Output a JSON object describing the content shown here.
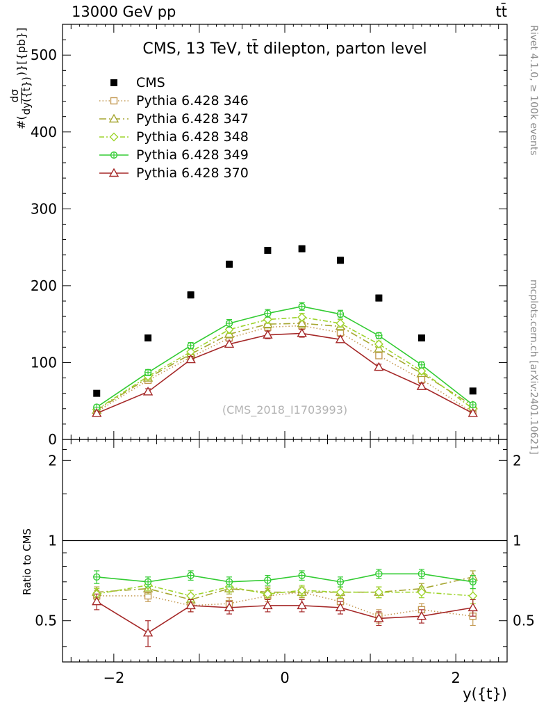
{
  "header": {
    "left": "13000 GeV pp",
    "right": "tt̄"
  },
  "titles": {
    "plot_title": "CMS, 13 TeV, tt̄ dilepton, parton level",
    "watermark": "(CMS_2018_I1703993)",
    "x_axis_label": "y({t})",
    "ratio_label": "Ratio to CMS",
    "y_axis_label_prefix": "#(",
    "y_axis_frac_num": "dσ",
    "y_axis_frac_den": "dy({t})",
    "y_axis_label_suffix": ")}[{pb}]",
    "right_top": "Rivet 4.1.0, ≥ 100k events",
    "right_bottom": "mcplots.cern.ch [arXiv:2401.10621]"
  },
  "chart_data": {
    "type": "line",
    "title": "CMS, 13 TeV, tt̄ dilepton, parton level",
    "xlabel": "y({t})",
    "ylabel": "#(dσ/dy({t}))}[{pb}]",
    "legend_position": "upper-left",
    "grid": false,
    "x": [
      -2.2,
      -1.6,
      -1.1,
      -0.65,
      -0.2,
      0.2,
      0.65,
      1.1,
      1.6,
      2.2
    ],
    "x_axis": {
      "range": [
        -2.6,
        2.6
      ],
      "ticks": [
        {
          "v": -2,
          "label": "−2"
        },
        {
          "v": 0,
          "label": "0"
        },
        {
          "v": 2,
          "label": "2"
        }
      ]
    },
    "main_axis": {
      "range": [
        0,
        540
      ],
      "minor_step": 20,
      "ticks": [
        {
          "v": 0,
          "label": "0"
        },
        {
          "v": 100,
          "label": "100"
        },
        {
          "v": 200,
          "label": "200"
        },
        {
          "v": 300,
          "label": "300"
        },
        {
          "v": 400,
          "label": "400"
        },
        {
          "v": 500,
          "label": "500"
        }
      ]
    },
    "ratio_axis": {
      "scale": "log",
      "range": [
        0.35,
        2.4
      ],
      "ref_line": 1,
      "ticks": [
        {
          "v": 0.5,
          "label": "0.5"
        },
        {
          "v": 1,
          "label": "1"
        },
        {
          "v": 2,
          "label": "2"
        }
      ],
      "minor": [
        0.4,
        0.6,
        0.7,
        0.8,
        0.9,
        1.5,
        2.2
      ]
    },
    "series": [
      {
        "id": "cms",
        "name": "CMS",
        "role": "reference",
        "color": "#000000",
        "marker": "square-filled",
        "line": "none",
        "dash": "",
        "values": [
          60,
          132,
          188,
          228,
          246,
          248,
          233,
          184,
          132,
          63
        ],
        "errors": [
          3,
          3,
          4,
          4,
          4,
          4,
          4,
          4,
          3,
          3
        ],
        "ratio": null,
        "ratio_errors": null
      },
      {
        "id": "py346",
        "name": "Pythia 6.428 346",
        "role": "mc",
        "color": "#c49a53",
        "marker": "square-open",
        "line": "dotted",
        "dash": "1.5 3",
        "values": [
          36,
          77,
          107,
          132,
          146,
          148,
          139,
          109,
          78,
          35
        ],
        "errors": [
          3,
          4,
          4,
          4,
          5,
          5,
          4,
          4,
          4,
          3
        ],
        "ratio": [
          0.62,
          0.62,
          0.57,
          0.58,
          0.62,
          0.64,
          0.59,
          0.52,
          0.55,
          0.52
        ],
        "ratio_errors": [
          0.03,
          0.03,
          0.03,
          0.03,
          0.03,
          0.03,
          0.03,
          0.03,
          0.03,
          0.04
        ]
      },
      {
        "id": "py347",
        "name": "Pythia 6.428 347",
        "role": "mc",
        "color": "#a6a630",
        "marker": "triangle-open",
        "line": "dash-dot",
        "dash": "10 4 2 4",
        "values": [
          38,
          80,
          111,
          137,
          150,
          151,
          147,
          118,
          86,
          44
        ],
        "errors": [
          3,
          4,
          4,
          5,
          5,
          5,
          5,
          4,
          4,
          3
        ],
        "ratio": [
          0.64,
          0.66,
          0.6,
          0.66,
          0.64,
          0.64,
          0.64,
          0.64,
          0.66,
          0.73
        ],
        "ratio_errors": [
          0.03,
          0.03,
          0.03,
          0.03,
          0.03,
          0.03,
          0.03,
          0.03,
          0.03,
          0.04
        ]
      },
      {
        "id": "py348",
        "name": "Pythia 6.428 348",
        "role": "mc",
        "color": "#9ed42c",
        "marker": "diamond-open",
        "line": "dash-dot",
        "dash": "7 3 2 3",
        "values": [
          39,
          82,
          114,
          143,
          156,
          159,
          151,
          124,
          89,
          40
        ],
        "errors": [
          3,
          4,
          4,
          5,
          5,
          5,
          5,
          4,
          4,
          3
        ],
        "ratio": [
          0.63,
          0.68,
          0.62,
          0.67,
          0.63,
          0.65,
          0.64,
          0.64,
          0.64,
          0.62
        ],
        "ratio_errors": [
          0.03,
          0.03,
          0.03,
          0.03,
          0.03,
          0.03,
          0.03,
          0.03,
          0.03,
          0.04
        ]
      },
      {
        "id": "py349",
        "name": "Pythia 6.428 349",
        "role": "mc",
        "color": "#33cc33",
        "marker": "circle-plus-open",
        "line": "solid",
        "dash": "",
        "values": [
          42,
          87,
          122,
          151,
          164,
          173,
          163,
          135,
          97,
          45
        ],
        "errors": [
          3,
          4,
          4,
          5,
          5,
          5,
          5,
          4,
          4,
          3
        ],
        "ratio": [
          0.73,
          0.7,
          0.74,
          0.7,
          0.71,
          0.74,
          0.7,
          0.75,
          0.75,
          0.7
        ],
        "ratio_errors": [
          0.04,
          0.03,
          0.03,
          0.03,
          0.03,
          0.03,
          0.03,
          0.03,
          0.03,
          0.04
        ]
      },
      {
        "id": "py370",
        "name": "Pythia 6.428 370",
        "role": "mc",
        "color": "#a52828",
        "marker": "triangle-open",
        "line": "solid",
        "dash": "",
        "values": [
          34,
          62,
          104,
          124,
          136,
          138,
          130,
          94,
          69,
          34
        ],
        "errors": [
          3,
          4,
          4,
          4,
          5,
          5,
          4,
          4,
          4,
          3
        ],
        "ratio": [
          0.59,
          0.45,
          0.57,
          0.56,
          0.57,
          0.57,
          0.56,
          0.51,
          0.52,
          0.56
        ],
        "ratio_errors": [
          0.04,
          0.05,
          0.03,
          0.03,
          0.03,
          0.03,
          0.03,
          0.03,
          0.03,
          0.04
        ]
      }
    ]
  }
}
